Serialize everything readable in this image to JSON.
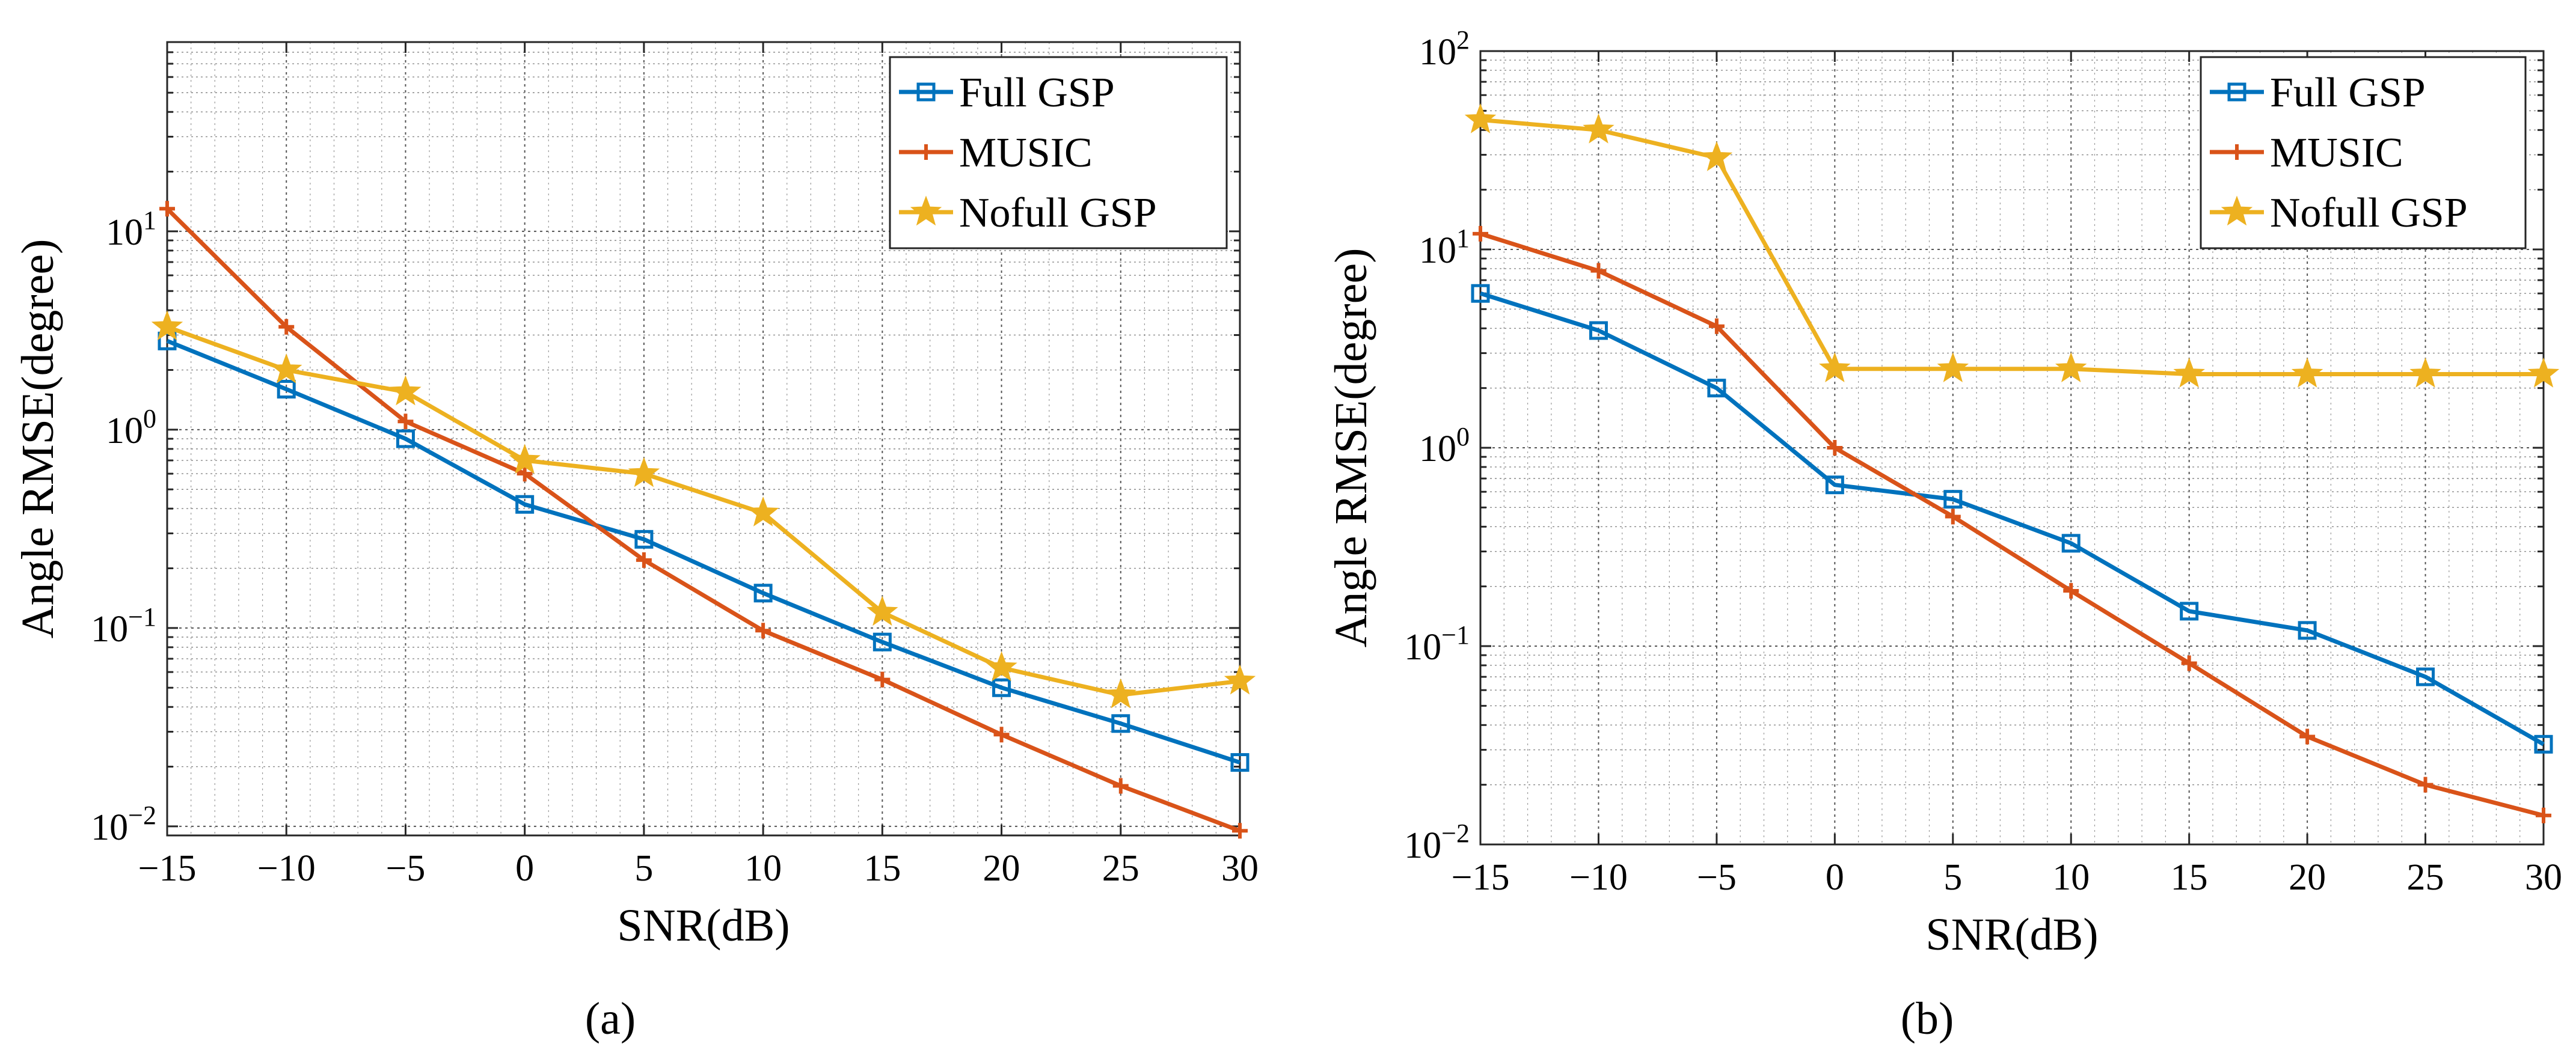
{
  "chart_data": [
    {
      "type": "line",
      "panel_label": "(a)",
      "xlabel": "SNR(dB)",
      "ylabel": "Angle RMSE(degree)",
      "yscale": "log",
      "xlim": [
        -15,
        30
      ],
      "ylim": [
        0.009,
        90
      ],
      "grid": true,
      "legend_position": "top-right",
      "x": [
        -15,
        -10,
        -5,
        0,
        5,
        10,
        15,
        20,
        25,
        30
      ],
      "x_ticks": [
        "−15",
        "−10",
        "−5",
        "0",
        "5",
        "10",
        "15",
        "20",
        "25",
        "30"
      ],
      "y_ticks": [
        {
          "value": 0.01,
          "base": "10",
          "exp": "−2"
        },
        {
          "value": 0.1,
          "base": "10",
          "exp": "−1"
        },
        {
          "value": 1,
          "base": "10",
          "exp": "0"
        },
        {
          "value": 10,
          "base": "10",
          "exp": "1"
        }
      ],
      "series": [
        {
          "name": "Full GSP",
          "color": "#0072BD",
          "marker": "square",
          "values": [
            2.8,
            1.6,
            0.9,
            0.42,
            0.28,
            0.15,
            0.085,
            0.05,
            0.033,
            0.021
          ]
        },
        {
          "name": "MUSIC",
          "color": "#D95319",
          "marker": "plus",
          "values": [
            13,
            3.3,
            1.1,
            0.6,
            0.22,
            0.097,
            0.055,
            0.029,
            0.016,
            0.0095
          ]
        },
        {
          "name": "Nofull GSP",
          "color": "#EDB120",
          "marker": "star",
          "values": [
            3.3,
            2.0,
            1.55,
            0.7,
            0.6,
            0.38,
            0.12,
            0.063,
            0.046,
            0.054
          ]
        }
      ]
    },
    {
      "type": "line",
      "panel_label": "(b)",
      "xlabel": "SNR(dB)",
      "ylabel": "Angle RMSE(degree)",
      "yscale": "log",
      "xlim": [
        -15,
        30
      ],
      "ylim": [
        0.01,
        100
      ],
      "grid": true,
      "legend_position": "top-right",
      "x": [
        -15,
        -10,
        -5,
        0,
        5,
        10,
        15,
        20,
        25,
        30
      ],
      "x_ticks": [
        "−15",
        "−10",
        "−5",
        "0",
        "5",
        "10",
        "15",
        "20",
        "25",
        "30"
      ],
      "y_ticks": [
        {
          "value": 0.01,
          "base": "10",
          "exp": "−2"
        },
        {
          "value": 0.1,
          "base": "10",
          "exp": "−1"
        },
        {
          "value": 1,
          "base": "10",
          "exp": "0"
        },
        {
          "value": 10,
          "base": "10",
          "exp": "1"
        },
        {
          "value": 100,
          "base": "10",
          "exp": "2"
        }
      ],
      "series": [
        {
          "name": "Full GSP",
          "color": "#0072BD",
          "marker": "square",
          "values": [
            6.0,
            3.9,
            2.0,
            0.65,
            0.55,
            0.33,
            0.15,
            0.12,
            0.07,
            0.032
          ]
        },
        {
          "name": "MUSIC",
          "color": "#D95319",
          "marker": "plus",
          "values": [
            12,
            7.8,
            4.1,
            1.0,
            0.45,
            0.19,
            0.082,
            0.035,
            0.02,
            0.014
          ]
        },
        {
          "name": "Nofull GSP",
          "color": "#EDB120",
          "marker": "star",
          "values": [
            45,
            40,
            29,
            2.5,
            2.5,
            2.5,
            2.35,
            2.35,
            2.35,
            2.35
          ]
        }
      ]
    }
  ]
}
